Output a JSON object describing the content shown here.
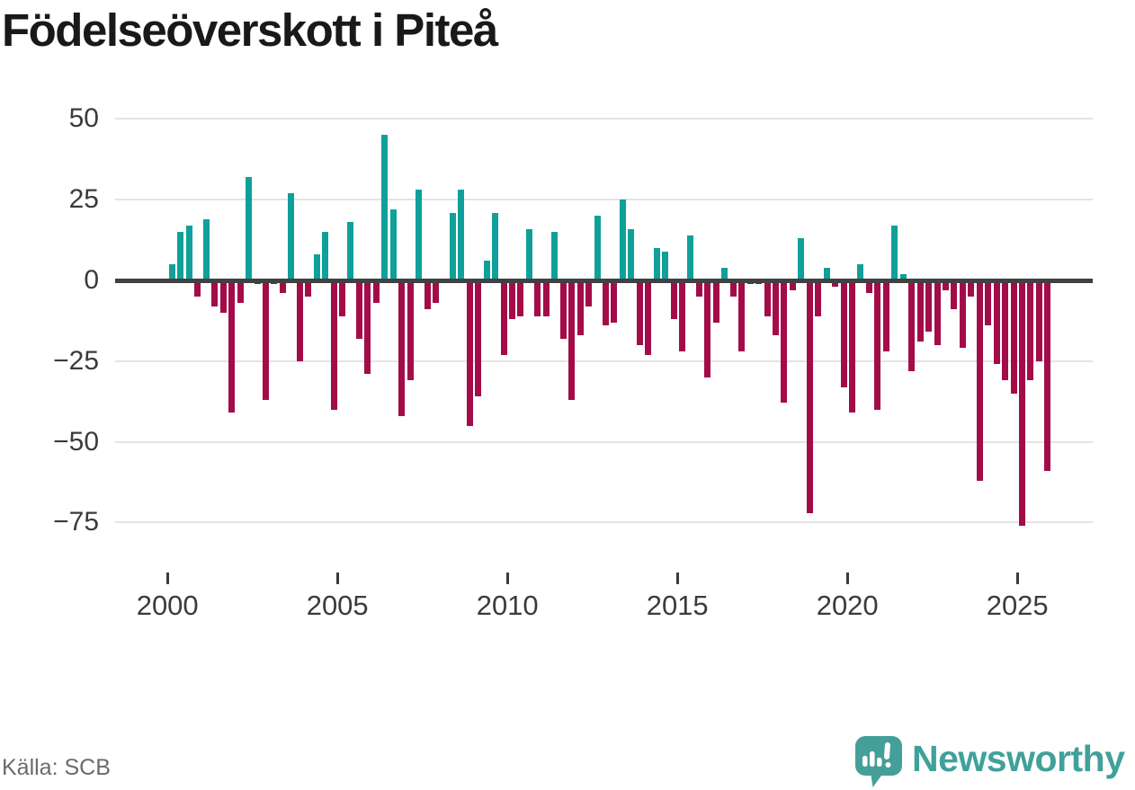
{
  "title": "Födelseöverskott i Piteå",
  "source": "Källa: SCB",
  "branding": {
    "wordmark": "Newsworthy",
    "logo_icon": "speech-bubble-with-bars-and-exclamation",
    "brand_color": "#3fa19a"
  },
  "colors": {
    "positive_bar": "#10a09a",
    "negative_bar": "#a30c49",
    "zero_line": "#414141",
    "gridline": "#e4e4e4",
    "axis_text": "#3b3b3b",
    "title_text": "#191919",
    "source_text": "#6a6a72",
    "background": "#ffffff"
  },
  "chart_data": {
    "type": "bar",
    "title": "Födelseöverskott i Piteå",
    "x_unit": "quarter",
    "ylim": [
      -80,
      52
    ],
    "grid": "horizontal",
    "yticks": [
      50,
      25,
      0,
      -25,
      -50,
      -75
    ],
    "ytick_labels": [
      "50",
      "25",
      "0",
      "−25",
      "−50",
      "−75"
    ],
    "xtick_labels": [
      "2000",
      "2005",
      "2010",
      "2015",
      "2020",
      "2025"
    ],
    "series_by_year": [
      {
        "year": 2000,
        "values": [
          5,
          15,
          17,
          -5
        ]
      },
      {
        "year": 2001,
        "values": [
          19,
          -8,
          -10,
          -41
        ]
      },
      {
        "year": 2002,
        "values": [
          -7,
          32,
          -1,
          -37
        ]
      },
      {
        "year": 2003,
        "values": [
          -1,
          -4,
          27,
          -25
        ]
      },
      {
        "year": 2004,
        "values": [
          -5,
          8,
          15,
          -40
        ]
      },
      {
        "year": 2005,
        "values": [
          -11,
          18,
          -18,
          -29
        ]
      },
      {
        "year": 2006,
        "values": [
          -7,
          45,
          22,
          -42
        ]
      },
      {
        "year": 2007,
        "values": [
          -31,
          28,
          -9,
          -7
        ]
      },
      {
        "year": 2008,
        "values": [
          0,
          21,
          28,
          -45
        ]
      },
      {
        "year": 2009,
        "values": [
          -36,
          6,
          21,
          -23
        ]
      },
      {
        "year": 2010,
        "values": [
          -12,
          -11,
          16,
          -11
        ]
      },
      {
        "year": 2011,
        "values": [
          -11,
          15,
          -18,
          -37
        ]
      },
      {
        "year": 2012,
        "values": [
          -17,
          -8,
          20,
          -14
        ]
      },
      {
        "year": 2013,
        "values": [
          -13,
          25,
          16,
          -20
        ]
      },
      {
        "year": 2014,
        "values": [
          -23,
          10,
          9,
          -12
        ]
      },
      {
        "year": 2015,
        "values": [
          -22,
          14,
          -5,
          -30
        ]
      },
      {
        "year": 2016,
        "values": [
          -13,
          4,
          -5,
          -22
        ]
      },
      {
        "year": 2017,
        "values": [
          -1,
          -1,
          -11,
          -17
        ]
      },
      {
        "year": 2018,
        "values": [
          -38,
          -3,
          13,
          -72
        ]
      },
      {
        "year": 2019,
        "values": [
          -11,
          4,
          -2,
          -33
        ]
      },
      {
        "year": 2020,
        "values": [
          -41,
          5,
          -4,
          -40
        ]
      },
      {
        "year": 2021,
        "values": [
          -22,
          17,
          2,
          -28
        ]
      },
      {
        "year": 2022,
        "values": [
          -19,
          -16,
          -20,
          -3
        ]
      },
      {
        "year": 2023,
        "values": [
          -9,
          -21,
          -5,
          -62
        ]
      },
      {
        "year": 2024,
        "values": [
          -14,
          -26,
          -31,
          -35
        ]
      },
      {
        "year": 2025,
        "values": [
          -76,
          -31,
          -25,
          -59
        ]
      }
    ]
  }
}
